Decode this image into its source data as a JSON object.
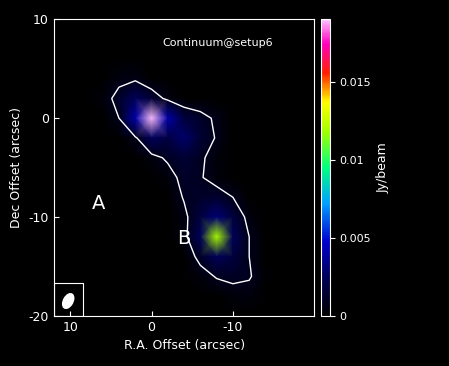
{
  "chart_data": {
    "type": "heatmap",
    "title": "Continuum@setup6",
    "x_label": "R.A. Offset (arcsec)",
    "y_label": "Dec Offset (arcsec)",
    "xlim": [
      12,
      -20
    ],
    "ylim": [
      -20,
      10
    ],
    "xticks": [
      10,
      0,
      -10
    ],
    "yticks": [
      10,
      0,
      -10,
      -20
    ],
    "x": [
      12,
      10,
      8,
      6,
      4,
      2,
      0,
      -2,
      -4,
      -6,
      -8,
      -10,
      -12,
      -14,
      -16,
      -18,
      -20
    ],
    "y": [
      10,
      8,
      6,
      4,
      2,
      0,
      -2,
      -4,
      -6,
      -8,
      -10,
      -12,
      -14,
      -16,
      -18,
      -20
    ],
    "cells": [
      [
        0,
        0,
        0,
        0,
        0,
        0,
        0,
        0,
        0,
        0,
        0,
        0,
        0,
        0,
        0,
        0,
        0
      ],
      [
        0,
        0,
        0,
        0,
        0,
        0,
        0,
        0,
        0,
        0,
        0,
        0,
        0,
        0,
        0,
        0,
        0
      ],
      [
        0,
        0,
        0,
        0,
        0,
        0,
        0,
        0,
        0,
        0,
        0,
        0,
        0,
        0,
        0,
        0,
        0
      ],
      [
        0,
        0,
        0,
        0,
        0.0005,
        0.0006,
        0,
        0,
        0,
        0,
        0,
        0,
        0,
        0,
        0,
        0,
        0
      ],
      [
        0,
        0,
        0,
        0.0003,
        0.0012,
        0.0025,
        0.0015,
        0.0005,
        0,
        0,
        0,
        0,
        0,
        0,
        0,
        0,
        0
      ],
      [
        0,
        0,
        0,
        0,
        0.0008,
        0.004,
        0.019,
        0.004,
        0.0018,
        0.0012,
        0.0006,
        0,
        0,
        0,
        0,
        0,
        0
      ],
      [
        0,
        0,
        0,
        0,
        0,
        0.0006,
        0.0025,
        0.002,
        0.0028,
        0.0015,
        0.0007,
        0,
        0,
        0,
        0,
        0,
        0
      ],
      [
        0,
        0,
        0,
        0,
        0,
        0,
        0.0004,
        0.001,
        0.0015,
        0.001,
        0.0003,
        0,
        0,
        0,
        0,
        0,
        0
      ],
      [
        0,
        0,
        0,
        0,
        0,
        0,
        0,
        0.0003,
        0.0012,
        0.0009,
        0.0003,
        0,
        0,
        0,
        0,
        0,
        0
      ],
      [
        0,
        0,
        0,
        0,
        0,
        0,
        0,
        0,
        0.0009,
        0.0012,
        0.0014,
        0.0008,
        0,
        0,
        0,
        0,
        0
      ],
      [
        0,
        0,
        0,
        0,
        0,
        0,
        0,
        0,
        0.0005,
        0.0018,
        0.003,
        0.0018,
        0.0004,
        0,
        0,
        0,
        0
      ],
      [
        0,
        0,
        0,
        0,
        0,
        0,
        0,
        0,
        0.0004,
        0.0025,
        0.012,
        0.0025,
        0.0008,
        0,
        0,
        0,
        0
      ],
      [
        0,
        0,
        0,
        0,
        0,
        0,
        0,
        0,
        0,
        0.0012,
        0.0025,
        0.0018,
        0.0008,
        0,
        0,
        0,
        0
      ],
      [
        0,
        0,
        0,
        0,
        0,
        0,
        0,
        0,
        0,
        0.0003,
        0.0009,
        0.0011,
        0.0009,
        0.0002,
        0,
        0,
        0
      ],
      [
        0,
        0,
        0,
        0,
        0,
        0,
        0,
        0,
        0,
        0,
        0,
        0.0003,
        0.0004,
        0,
        0,
        0,
        0
      ],
      [
        0,
        0,
        0,
        0,
        0,
        0,
        0,
        0,
        0,
        0,
        0,
        0,
        0,
        0,
        0,
        0,
        0
      ]
    ],
    "colorbar_range": [
      0,
      0.019
    ],
    "colorbar_ticks": [
      0,
      0.005,
      0.01,
      0.015
    ],
    "colorbar_label": "Jy/beam",
    "contour_levels": [
      0.0008
    ],
    "annotations": [
      "A",
      "B"
    ]
  }
}
